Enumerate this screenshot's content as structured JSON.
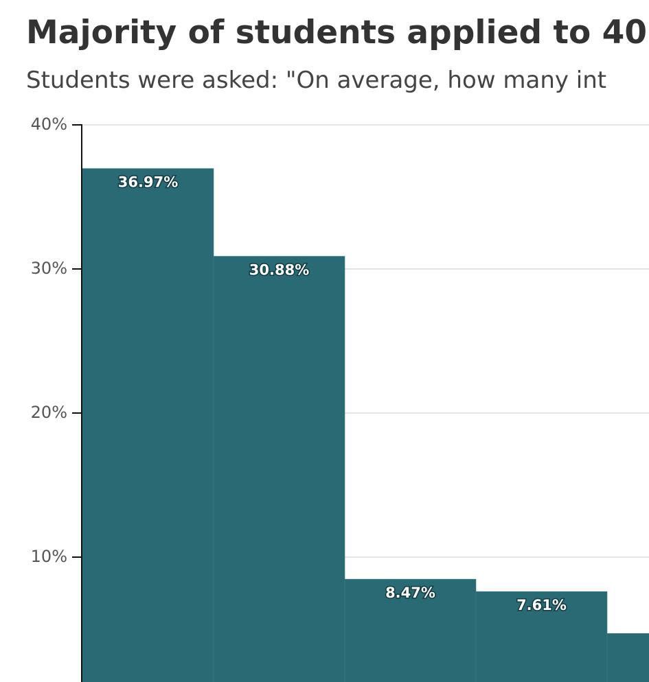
{
  "chart_data": {
    "type": "bar",
    "title": "Majority of students applied to 40",
    "subtitle": "Students were asked: \"On average, how many int",
    "categories": [
      null,
      null,
      null,
      null,
      null
    ],
    "values": [
      36.97,
      30.88,
      8.47,
      7.61,
      4.7
    ],
    "value_labels": [
      "36.97%",
      "30.88%",
      "8.47%",
      "7.61%",
      null
    ],
    "color": "#296a74",
    "ylim": [
      0,
      40
    ],
    "yticks": [
      {
        "value": 10,
        "label": "10%"
      },
      {
        "value": 20,
        "label": "20%"
      },
      {
        "value": 30,
        "label": "30%"
      },
      {
        "value": 40,
        "label": "40%"
      }
    ],
    "grid": true
  }
}
